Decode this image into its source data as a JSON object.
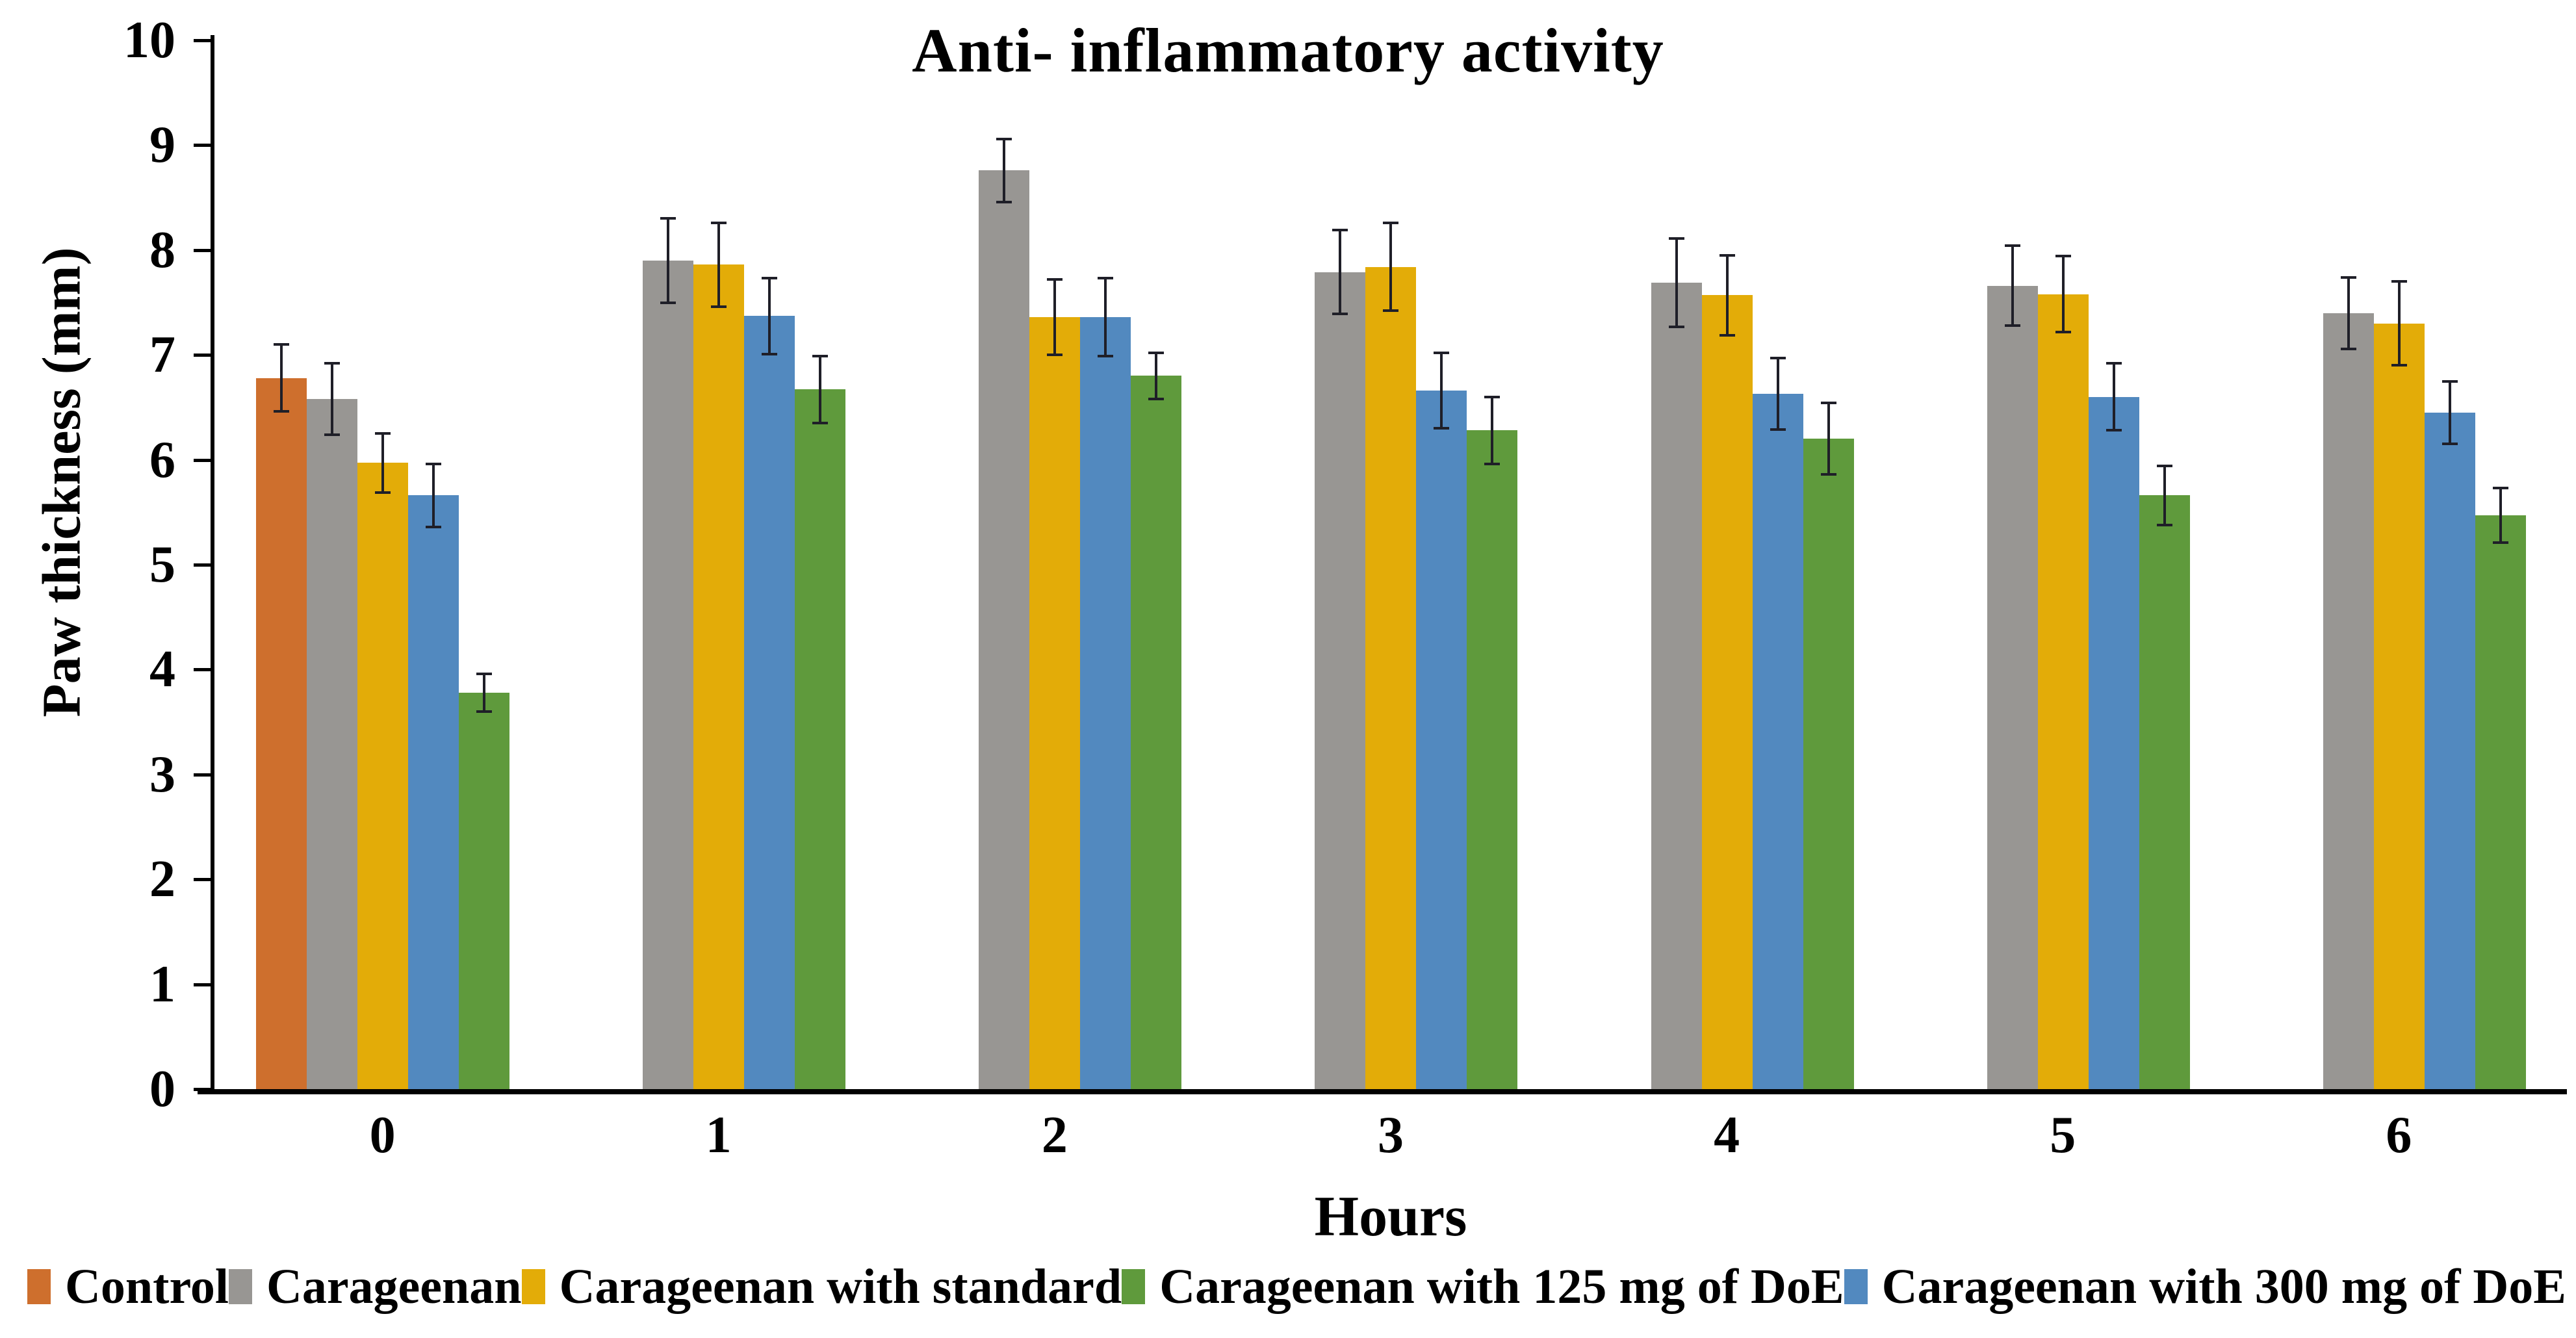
{
  "page": {
    "background": "#ffffff",
    "text_color": "#000000"
  },
  "chart_data": {
    "type": "bar",
    "title": "Anti- inflammatory activity",
    "xlabel": "Hours",
    "ylabel": "Paw thickness (mm)",
    "ylim": [
      0,
      10
    ],
    "yticks": [
      0,
      1,
      2,
      3,
      4,
      5,
      6,
      7,
      8,
      9,
      10
    ],
    "categories": [
      "0",
      "1",
      "2",
      "3",
      "4",
      "5",
      "6"
    ],
    "grid": false,
    "legend_position": "bottom",
    "axis_color": "#000000",
    "error_bar_color": "#1f1f28",
    "error_bars": "plus-minus with caps",
    "series": [
      {
        "name": "Control",
        "color": "#CE6F2D",
        "values": [
          6.78,
          null,
          null,
          null,
          null,
          null,
          null
        ],
        "errors": [
          0.32,
          null,
          null,
          null,
          null,
          null,
          null
        ]
      },
      {
        "name": "Carageenan",
        "color": "#989693",
        "values": [
          6.58,
          7.9,
          8.76,
          7.79,
          7.69,
          7.66,
          7.4
        ],
        "errors": [
          0.34,
          0.4,
          0.3,
          0.4,
          0.42,
          0.38,
          0.34
        ]
      },
      {
        "name": "Carageenan with standard",
        "color": "#E3AC08",
        "values": [
          5.97,
          7.86,
          7.36,
          7.84,
          7.57,
          7.58,
          7.3
        ],
        "errors": [
          0.28,
          0.4,
          0.36,
          0.42,
          0.38,
          0.36,
          0.4
        ]
      },
      {
        "name": "Carageenan with 125 mg of DoE",
        "color": "#5F9A3C",
        "values": [
          3.78,
          6.67,
          6.8,
          6.28,
          6.2,
          5.66,
          5.47
        ],
        "errors": [
          0.18,
          0.32,
          0.22,
          0.32,
          0.34,
          0.28,
          0.26
        ]
      },
      {
        "name": "Carageenan with 300 mg of DoE",
        "color": "#5289BF",
        "values": [
          5.66,
          7.37,
          7.36,
          6.66,
          6.63,
          6.6,
          6.45
        ],
        "errors": [
          0.3,
          0.36,
          0.37,
          0.36,
          0.34,
          0.32,
          0.3
        ]
      }
    ],
    "slot_order": [
      0,
      1,
      2,
      4,
      3
    ],
    "note_layout": "bars per hour drawn left-to-right: Control, Carageenan, standard, 300 mg DoE, 125 mg DoE; Control appears only at hour 0, its slot stays empty afterwards"
  }
}
